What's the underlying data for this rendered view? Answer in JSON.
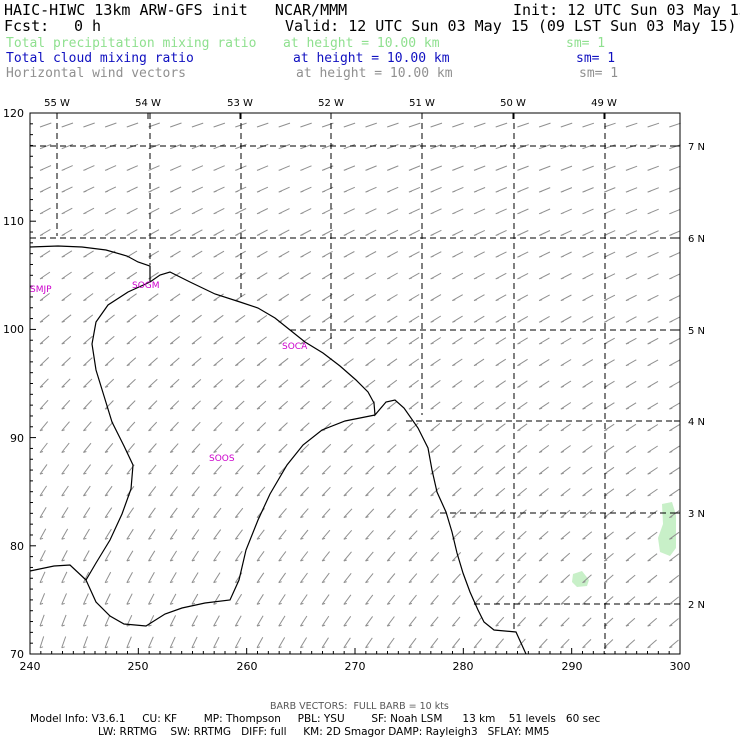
{
  "header": {
    "model_title": "HAIC-HIWC 13km ARW-GFS init   NCAR/MMM",
    "init_time": "Init: 12 UTC Sun 03 May 15",
    "fcst_label": "Fcst:",
    "fcst_value": "0 h",
    "valid_time": "Valid: 12 UTC Sun 03 May 15 (09 LST Sun 03 May 15)"
  },
  "fields": [
    {
      "name": "Total precipitation mixing ratio",
      "height": "at height = 10.00 km",
      "sm": "sm= 1",
      "color": "#8fe08f"
    },
    {
      "name": "Total cloud mixing ratio",
      "height": "at height = 10.00 km",
      "sm": "sm= 1",
      "color": "#1010c0"
    },
    {
      "name": "Horizontal wind vectors",
      "height": "at height = 10.00 km",
      "sm": "sm= 1",
      "color": "#909090"
    }
  ],
  "map": {
    "lon_labels": [
      "55 W",
      "54 W",
      "53 W",
      "52 W",
      "51 W",
      "50 W",
      "49 W"
    ],
    "lat_labels": [
      "7 N",
      "6 N",
      "5 N",
      "4 N",
      "3 N",
      "2 N"
    ],
    "x_ticks": [
      "240",
      "250",
      "260",
      "270",
      "280",
      "290",
      "300"
    ],
    "y_ticks": [
      "70",
      "80",
      "90",
      "100",
      "110",
      "120"
    ],
    "x_range": [
      240,
      300
    ],
    "y_range": [
      70,
      120
    ],
    "stations": [
      "SMJP",
      "SOGM",
      "SOCA",
      "SOOS"
    ],
    "station_color": "#cc00cc",
    "coast_color": "#000000",
    "precip_color": "#c8f0c8"
  },
  "footer": {
    "barb_note": "BARB VECTORS:  FULL BARB = 10 kts",
    "model_info_1": "Model Info: V3.6.1     CU: KF        MP: Thompson     PBL: YSU        SF: Noah LSM      13 km    51 levels   60 sec",
    "model_info_2": "LW: RRTMG    SW: RRTMG   DIFF: full     KM: 2D Smagor DAMP: Rayleigh3   SFLAY: MM5"
  }
}
